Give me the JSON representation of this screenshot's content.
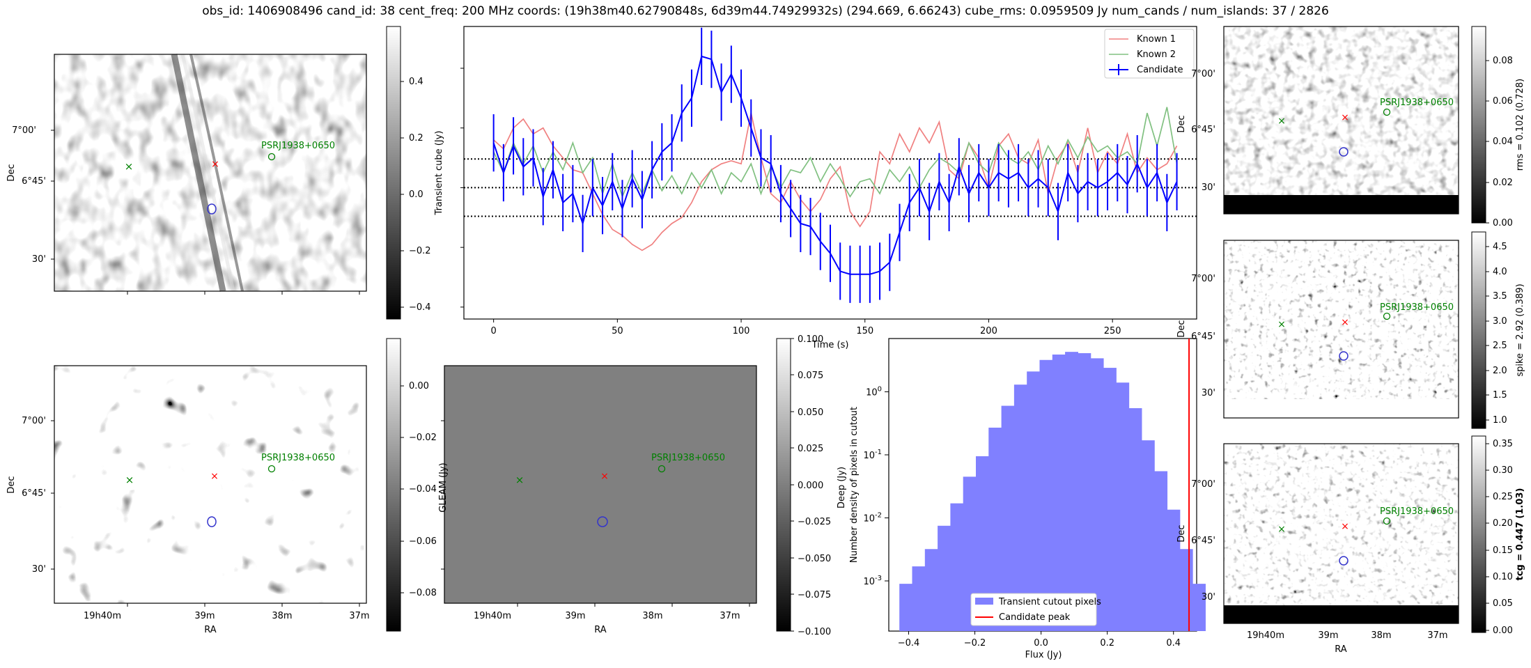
{
  "header": {
    "title": "obs_id: 1406908496 cand_id: 38 cent_freq: 200 MHz coords: (19h38m40.62790848s, 6d39m44.74929932s) (294.669, 6.66243) cube_rms: 0.0959509 Jy num_cands / num_islands: 37 / 2826"
  },
  "colors": {
    "candidate": "#0000ff",
    "known1": "#f08080",
    "known2": "#80c080",
    "hist": "#8080ff",
    "peak": "#ff0000",
    "marker_red": "#ff0000",
    "marker_green": "#008000",
    "contour": "#3333cc"
  },
  "sky_axes": {
    "ra_label": "RA",
    "dec_label": "Dec",
    "ra_ticks": [
      "19h40m",
      "39m",
      "38m",
      "37m"
    ],
    "dec_ticks": [
      "7°00'",
      "6°45'",
      "30'"
    ],
    "source_label": "PSRJ1938+0650"
  },
  "panels": {
    "transient_image": {
      "colorbar_ticks": [
        "0.4",
        "0.2",
        "0.0",
        "−0.2",
        "−0.4"
      ]
    },
    "deep_image": {
      "colorbar_ticks": [
        "0.00",
        "−0.02",
        "−0.04",
        "−0.06",
        "−0.08"
      ],
      "colorbar_label": "Deep (Jy)"
    },
    "gleam_image": {
      "colorbar_ticks": [
        "0.100",
        "0.075",
        "0.050",
        "0.025",
        "0.000",
        "−0.025",
        "−0.050",
        "−0.075",
        "−0.100"
      ],
      "colorbar_label": "GLEAM (Jy)"
    },
    "rms_image": {
      "colorbar_ticks": [
        "0.08",
        "0.06",
        "0.04",
        "0.02",
        "0.00"
      ],
      "colorbar_label": "rms = 0.102 (0.728)"
    },
    "spike_image": {
      "colorbar_ticks": [
        "4.5",
        "4.0",
        "3.5",
        "3.0",
        "2.5",
        "2.0",
        "1.5",
        "1.0"
      ],
      "colorbar_label": "spike = 2.92 (0.389)"
    },
    "tcg_image": {
      "colorbar_ticks": [
        "0.35",
        "0.30",
        "0.25",
        "0.20",
        "0.15",
        "0.10",
        "0.05",
        "0.00"
      ],
      "colorbar_label": "tcg = 0.447 (1.03)"
    }
  },
  "chart_data": [
    {
      "type": "line",
      "title": "",
      "xlabel": "Time (s)",
      "ylabel": "Transient cube (Jy)",
      "xlim": [
        -12,
        284
      ],
      "ylim": [
        -0.44,
        0.54
      ],
      "xticks": [
        0,
        50,
        100,
        150,
        200,
        250
      ],
      "xtick_labels": [
        "0",
        "50",
        "100",
        "150",
        "200",
        "250"
      ],
      "yticks": [
        -0.4,
        -0.2,
        0.0,
        0.2,
        0.4
      ],
      "hlines": [
        -0.0959509,
        0.0,
        0.0959509
      ],
      "legend": [
        "Known 1",
        "Known 2",
        "Candidate"
      ],
      "legend_position": "top-right",
      "x": [
        0,
        4,
        8,
        12,
        16,
        20,
        24,
        28,
        32,
        36,
        40,
        44,
        48,
        52,
        56,
        60,
        64,
        68,
        72,
        76,
        80,
        84,
        88,
        92,
        96,
        100,
        104,
        108,
        112,
        116,
        120,
        124,
        128,
        132,
        136,
        140,
        144,
        148,
        152,
        156,
        160,
        164,
        168,
        172,
        176,
        180,
        184,
        188,
        192,
        196,
        200,
        204,
        208,
        212,
        216,
        220,
        224,
        228,
        232,
        236,
        240,
        244,
        248,
        252,
        256,
        260,
        264,
        268,
        272,
        276
      ],
      "series": [
        {
          "name": "Known 1",
          "values": [
            0.16,
            0.13,
            0.2,
            0.23,
            0.18,
            0.2,
            0.14,
            0.1,
            0.06,
            0.05,
            -0.02,
            -0.09,
            -0.14,
            -0.16,
            -0.19,
            -0.21,
            -0.19,
            -0.15,
            -0.12,
            -0.1,
            -0.05,
            0.02,
            0.06,
            0.08,
            0.09,
            0.08,
            0.25,
            0.1,
            -0.02,
            -0.05,
            0.02,
            -0.04,
            -0.08,
            -0.04,
            0.03,
            0.07,
            -0.08,
            -0.13,
            -0.08,
            0.12,
            0.08,
            0.18,
            0.12,
            0.2,
            0.15,
            0.22,
            0.06,
            0.03,
            0.15,
            0.1,
            0.0,
            0.14,
            0.18,
            0.1,
            0.08,
            0.16,
            -0.02,
            0.1,
            0.15,
            0.05,
            0.2,
            0.05,
            0.12,
            0.08,
            0.18,
            0.05,
            0.1,
            0.06,
            0.08,
            0.14
          ]
        },
        {
          "name": "Known 2",
          "values": [
            0.12,
            0.05,
            0.15,
            0.08,
            0.14,
            0.05,
            0.12,
            0.06,
            0.15,
            0.05,
            0.1,
            -0.02,
            0.08,
            -0.03,
            0.05,
            -0.02,
            0.06,
            -0.01,
            0.04,
            -0.02,
            0.05,
            0.0,
            0.06,
            -0.02,
            0.05,
            0.02,
            0.08,
            -0.02,
            0.07,
            0.0,
            0.06,
            0.05,
            0.1,
            0.02,
            0.08,
            0.03,
            -0.03,
            0.02,
            0.03,
            -0.02,
            0.06,
            0.02,
            0.07,
            0.0,
            0.06,
            0.1,
            0.08,
            0.05,
            0.15,
            0.08,
            0.05,
            0.15,
            0.1,
            0.08,
            0.12,
            0.06,
            0.14,
            0.08,
            0.16,
            0.1,
            0.17,
            0.12,
            0.14,
            0.1,
            0.12,
            0.08,
            0.25,
            0.14,
            0.27,
            0.08
          ]
        },
        {
          "name": "Candidate",
          "values": [
            0.15,
            0.05,
            0.14,
            0.07,
            0.1,
            -0.03,
            0.06,
            -0.05,
            -0.02,
            -0.12,
            0.0,
            -0.06,
            0.02,
            -0.07,
            0.03,
            -0.04,
            0.06,
            0.12,
            0.15,
            0.25,
            0.3,
            0.44,
            0.43,
            0.32,
            0.38,
            0.3,
            0.2,
            0.1,
            0.08,
            -0.02,
            -0.07,
            -0.12,
            -0.13,
            -0.18,
            -0.22,
            -0.28,
            -0.29,
            -0.29,
            -0.29,
            -0.28,
            -0.25,
            -0.15,
            -0.05,
            0.0,
            -0.08,
            0.02,
            -0.05,
            0.07,
            -0.02,
            0.05,
            0.0,
            0.05,
            0.03,
            0.05,
            0.0,
            0.03,
            0.0,
            -0.08,
            0.05,
            -0.02,
            0.02,
            0.0,
            0.02,
            0.05,
            0.01,
            0.08,
            0.0,
            0.05,
            -0.05,
            0.02
          ]
        }
      ],
      "error_bar": 0.0959509
    },
    {
      "type": "bar",
      "title": "",
      "xlabel": "Flux (Jy)",
      "ylabel": "Number density of pixels in cutout",
      "yscale": "log",
      "xlim": [
        -0.46,
        0.47
      ],
      "ylim": [
        0.00016,
        7
      ],
      "xticks": [
        -0.4,
        -0.2,
        0.0,
        0.2,
        0.4
      ],
      "xtick_labels": [
        "−0.4",
        "−0.2",
        "0.0",
        "0.2",
        "0.4"
      ],
      "ytick_labels": [
        "10^0",
        "10^-1",
        "10^-2",
        "10^-3"
      ],
      "bin_width": 0.0385,
      "bin_start": -0.428,
      "values": [
        0.0009,
        0.0017,
        0.0032,
        0.0075,
        0.017,
        0.045,
        0.095,
        0.27,
        0.6,
        1.3,
        2.1,
        3.2,
        3.9,
        4.3,
        4.1,
        3.4,
        2.4,
        1.4,
        0.55,
        0.17,
        0.055,
        0.0135,
        0.0032,
        0.0009
      ],
      "candidate_peak": 0.447,
      "legend": [
        "Transient cutout pixels",
        "Candidate peak"
      ],
      "legend_position": "bottom-center"
    }
  ]
}
